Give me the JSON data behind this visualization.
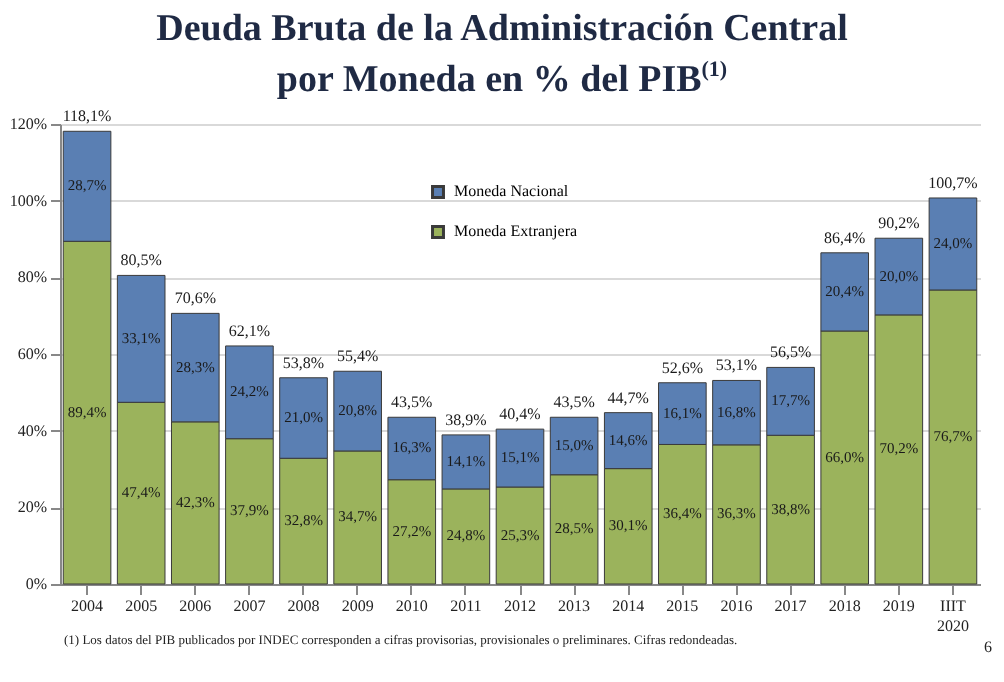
{
  "chart_data": {
    "type": "bar",
    "stacked": true,
    "title": "Deuda Bruta de la Administración Central\npor Moneda en % del PIB$^{(1)}$",
    "categories": [
      "2004",
      "2005",
      "2006",
      "2007",
      "2008",
      "2009",
      "2010",
      "2011",
      "2012",
      "2013",
      "2014",
      "2015",
      "2016",
      "2017",
      "2018",
      "2019",
      "IIIT 2020"
    ],
    "series": [
      {
        "name": "Moneda Extranjera",
        "color": "#9bb35c",
        "values": [
          89.4,
          47.4,
          42.3,
          37.9,
          32.8,
          34.7,
          27.2,
          24.8,
          25.3,
          28.5,
          30.1,
          36.4,
          36.3,
          38.8,
          66.0,
          70.2,
          76.7
        ],
        "value_labels": [
          "89,4%",
          "47,4%",
          "42,3%",
          "37,9%",
          "32,8%",
          "34,7%",
          "27,2%",
          "24,8%",
          "25,3%",
          "28,5%",
          "30,1%",
          "36,4%",
          "36,3%",
          "38,8%",
          "66,0%",
          "70,2%",
          "76,7%"
        ]
      },
      {
        "name": "Moneda Nacional",
        "color": "#5a7fb3",
        "values": [
          28.7,
          33.1,
          28.3,
          24.2,
          21.0,
          20.8,
          16.3,
          14.1,
          15.1,
          15.0,
          14.6,
          16.1,
          16.8,
          17.7,
          20.4,
          20.0,
          24.0
        ],
        "value_labels": [
          "28,7%",
          "33,1%",
          "28,3%",
          "24,2%",
          "21,0%",
          "20,8%",
          "16,3%",
          "14,1%",
          "15,1%",
          "15,0%",
          "14,6%",
          "16,1%",
          "16,8%",
          "17,7%",
          "20,4%",
          "20,0%",
          "24,0%"
        ]
      }
    ],
    "totals": [
      "118,1%",
      "80,5%",
      "70,6%",
      "62,1%",
      "53,8%",
      "55,4%",
      "43,5%",
      "38,9%",
      "40,4%",
      "43,5%",
      "44,7%",
      "52,6%",
      "53,1%",
      "56,5%",
      "86,4%",
      "90,2%",
      "100,7%"
    ],
    "ylim": [
      0,
      120
    ],
    "yticks": [
      {
        "value": 0,
        "label": "0%"
      },
      {
        "value": 20,
        "label": "20%"
      },
      {
        "value": 40,
        "label": "40%"
      },
      {
        "value": 60,
        "label": "60%"
      },
      {
        "value": 80,
        "label": "80%"
      },
      {
        "value": 100,
        "label": "100%"
      },
      {
        "value": 120,
        "label": "120%"
      }
    ],
    "grid": "y",
    "legend": "top",
    "annotations": [
      "(1) Los datos del PIB publicados por INDEC corresponden a cifras provisorias, provisionales o preliminares. Cifras redondeadas.",
      "6"
    ]
  }
}
